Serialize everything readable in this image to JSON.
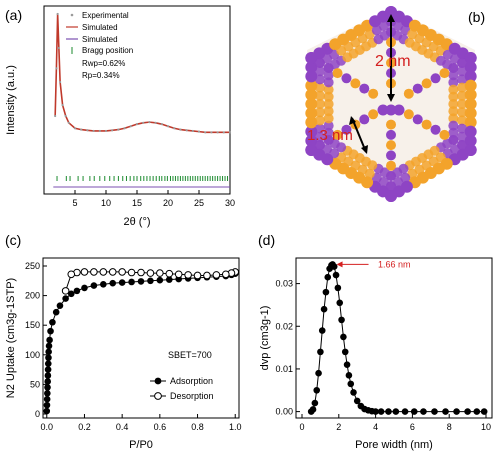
{
  "panels": {
    "a": {
      "label": "(a)"
    },
    "b": {
      "label": "(b)",
      "annot_large": "2 nm",
      "annot_small": "1.3 nm"
    },
    "c": {
      "label": "(c)"
    },
    "d": {
      "label": "(d)"
    }
  },
  "colors": {
    "experimental": "#9a9a9a",
    "simulated_red": "#c0392b",
    "simulated_purple": "#7b4fb0",
    "bragg": "#1b8a2e",
    "framework_orange": "#f3a32b",
    "framework_purple": "#8e44c4",
    "annotation_red": "#d42020"
  },
  "chart_data": [
    {
      "panel": "a",
      "type": "line",
      "xlabel": "2θ (°)",
      "ylabel": "Intensity (a.u.)",
      "xlim": [
        0,
        30
      ],
      "xticks": [
        5,
        10,
        15,
        20,
        25,
        30
      ],
      "xtick_labels": [
        "5",
        "10",
        "15",
        "20",
        "25",
        "30"
      ],
      "legend_position": "top-right",
      "legend": [
        "Experimental",
        "Simulated",
        "Simulated",
        "Bragg position"
      ],
      "annotations": [
        "Rwp=0.62%",
        "Rp=0.34%"
      ],
      "series": [
        {
          "name": "Experimental",
          "style": "dots",
          "x": [
            1.8,
            2.0,
            2.2,
            2.4,
            2.6,
            3.0,
            3.5,
            4.0,
            5,
            6,
            7,
            8,
            9,
            10,
            11,
            12,
            13,
            14,
            15,
            16,
            17,
            18,
            19,
            20,
            21,
            22,
            23,
            24,
            25,
            26,
            27,
            28,
            29,
            30
          ],
          "y": [
            0.25,
            0.6,
            1.0,
            0.75,
            0.5,
            0.33,
            0.25,
            0.2,
            0.16,
            0.15,
            0.145,
            0.14,
            0.14,
            0.14,
            0.145,
            0.15,
            0.16,
            0.175,
            0.19,
            0.2,
            0.205,
            0.2,
            0.19,
            0.175,
            0.16,
            0.15,
            0.145,
            0.14,
            0.135,
            0.13,
            0.13,
            0.13,
            0.13,
            0.13
          ]
        },
        {
          "name": "Simulated",
          "style": "line",
          "x": [
            1.8,
            2.0,
            2.2,
            2.4,
            2.6,
            3.0,
            3.5,
            4.0,
            5,
            6,
            7,
            8,
            9,
            10,
            11,
            12,
            13,
            14,
            15,
            16,
            17,
            18,
            19,
            20,
            21,
            22,
            23,
            24,
            25,
            26,
            27,
            28,
            29,
            30
          ],
          "y": [
            0.25,
            0.6,
            1.0,
            0.75,
            0.5,
            0.33,
            0.25,
            0.2,
            0.16,
            0.15,
            0.145,
            0.14,
            0.14,
            0.14,
            0.145,
            0.15,
            0.16,
            0.175,
            0.19,
            0.2,
            0.205,
            0.2,
            0.19,
            0.175,
            0.16,
            0.15,
            0.145,
            0.14,
            0.135,
            0.13,
            0.13,
            0.13,
            0.13,
            0.13
          ]
        },
        {
          "name": "Simulated",
          "style": "line-flat",
          "x": [
            1.5,
            30
          ],
          "y": [
            0.0,
            0.0
          ]
        },
        {
          "name": "Bragg position",
          "style": "ticks",
          "x": [
            2.1,
            3.6,
            4.2,
            5.5,
            6.3,
            7.4,
            8.1,
            9.0,
            9.8,
            10.6,
            11.3,
            12.0,
            12.7,
            13.3,
            13.9,
            14.5,
            15.0,
            15.6,
            16.1,
            16.6,
            17.1,
            17.6,
            18.1,
            18.6,
            19.0,
            19.5,
            19.9,
            20.4,
            20.8,
            21.2,
            21.6,
            22.0,
            22.4,
            22.8,
            23.2,
            23.6,
            24.0,
            24.4,
            24.8,
            25.2,
            25.6,
            26.0,
            26.4,
            26.8,
            27.2,
            27.6,
            28.0,
            28.4,
            28.8,
            29.2,
            29.6
          ]
        }
      ]
    },
    {
      "panel": "c",
      "type": "line",
      "xlabel": "P/P0",
      "ylabel": "N2 Uptake (cm3g-1STP)",
      "xlim": [
        -0.02,
        1.02
      ],
      "ylim": [
        0,
        250
      ],
      "xticks": [
        0.0,
        0.2,
        0.4,
        0.6,
        0.8,
        1.0
      ],
      "xtick_labels": [
        "0.0",
        "0.2",
        "0.4",
        "0.6",
        "0.8",
        "1.0"
      ],
      "yticks": [
        0,
        50,
        100,
        150,
        200,
        250
      ],
      "ytick_labels": [
        "0",
        "50",
        "100",
        "150",
        "200",
        "250"
      ],
      "legend_position": "bottom-right",
      "annotation": "SBET=700",
      "series": [
        {
          "name": "Adsorption",
          "marker": "filled",
          "x": [
            0.0,
            0.001,
            0.002,
            0.003,
            0.004,
            0.005,
            0.006,
            0.007,
            0.008,
            0.009,
            0.01,
            0.012,
            0.015,
            0.02,
            0.03,
            0.05,
            0.07,
            0.1,
            0.13,
            0.16,
            0.2,
            0.25,
            0.3,
            0.35,
            0.4,
            0.45,
            0.5,
            0.55,
            0.6,
            0.65,
            0.7,
            0.75,
            0.8,
            0.85,
            0.9,
            0.95,
            0.98,
            1.0
          ],
          "y": [
            5,
            15,
            25,
            35,
            45,
            55,
            65,
            75,
            85,
            95,
            105,
            115,
            125,
            140,
            155,
            172,
            183,
            195,
            203,
            208,
            213,
            217,
            219,
            221,
            222,
            223,
            224,
            225,
            226,
            227,
            228,
            229,
            230,
            231,
            232,
            233,
            235,
            237
          ]
        },
        {
          "name": "Desorption",
          "marker": "open",
          "x": [
            1.0,
            0.98,
            0.95,
            0.9,
            0.85,
            0.8,
            0.75,
            0.7,
            0.65,
            0.6,
            0.55,
            0.5,
            0.45,
            0.4,
            0.35,
            0.3,
            0.25,
            0.2,
            0.16,
            0.13,
            0.1
          ],
          "y": [
            240,
            238,
            236,
            235,
            234,
            234,
            235,
            236,
            237,
            238,
            238,
            239,
            239,
            240,
            240,
            240,
            240,
            240,
            239,
            236,
            208
          ]
        }
      ]
    },
    {
      "panel": "d",
      "type": "line",
      "xlabel": "Pore width (nm)",
      "ylabel": "dvp (cm3g-1)",
      "xlim": [
        0,
        10
      ],
      "ylim": [
        -0.0015,
        0.036
      ],
      "xticks": [
        0,
        2,
        4,
        6,
        8,
        10
      ],
      "xtick_labels": [
        "0",
        "2",
        "4",
        "6",
        "8",
        "10"
      ],
      "yticks": [
        0.0,
        0.01,
        0.02,
        0.03
      ],
      "ytick_labels": [
        "0.00",
        "0.01",
        "0.02",
        "0.03"
      ],
      "annotation": "1.66 nm",
      "annotation_x": 1.66,
      "series": [
        {
          "name": "",
          "marker": "filled",
          "x": [
            0.5,
            0.6,
            0.7,
            0.8,
            0.9,
            1.0,
            1.1,
            1.2,
            1.3,
            1.4,
            1.5,
            1.6,
            1.66,
            1.75,
            1.85,
            1.95,
            2.05,
            2.15,
            2.25,
            2.35,
            2.45,
            2.55,
            2.65,
            2.8,
            3.0,
            3.2,
            3.4,
            3.6,
            3.8,
            4.0,
            4.3,
            4.7,
            5.1,
            5.6,
            6.1,
            6.6,
            7.2,
            7.8,
            8.4,
            9.0,
            9.5,
            9.9
          ],
          "y": [
            0.0,
            0.0005,
            0.002,
            0.005,
            0.009,
            0.014,
            0.019,
            0.024,
            0.028,
            0.0315,
            0.0335,
            0.0343,
            0.0345,
            0.034,
            0.032,
            0.029,
            0.0255,
            0.0215,
            0.0175,
            0.014,
            0.011,
            0.0085,
            0.0065,
            0.0045,
            0.0025,
            0.0013,
            0.0006,
            0.0003,
            0.0001,
            0.0,
            0.0,
            0.0,
            0.0,
            0.0,
            0.0,
            0.0,
            0.0,
            0.0,
            0.0,
            0.0,
            0.0,
            0.0
          ]
        }
      ]
    }
  ]
}
